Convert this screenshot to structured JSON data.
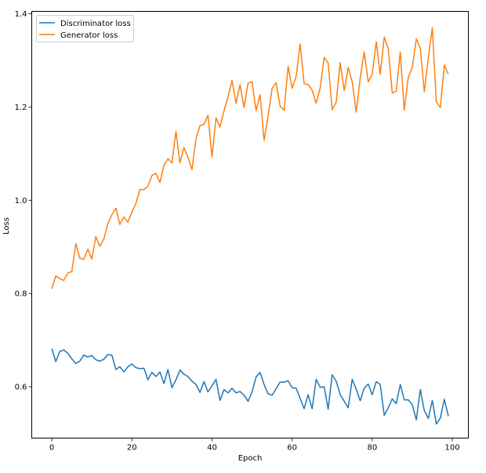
{
  "chart_data": {
    "type": "line",
    "xlabel": "Epoch",
    "ylabel": "Loss",
    "xlim": [
      -5,
      104
    ],
    "ylim": [
      0.49,
      1.405
    ],
    "xticks": [
      0,
      20,
      40,
      60,
      80,
      100
    ],
    "yticks": [
      0.6,
      0.8,
      1.0,
      1.2,
      1.4
    ],
    "xtick_labels": [
      "0",
      "20",
      "40",
      "60",
      "80",
      "100"
    ],
    "ytick_labels": [
      "0.6",
      "0.8",
      "1.0",
      "1.2",
      "1.4"
    ],
    "grid": false,
    "legend_position": "upper left",
    "series": [
      {
        "name": "Discriminator loss",
        "color": "#1f77b4",
        "values": [
          0.682,
          0.654,
          0.676,
          0.679,
          0.672,
          0.66,
          0.65,
          0.655,
          0.668,
          0.664,
          0.667,
          0.658,
          0.655,
          0.659,
          0.669,
          0.668,
          0.637,
          0.643,
          0.632,
          0.643,
          0.649,
          0.641,
          0.639,
          0.64,
          0.615,
          0.631,
          0.622,
          0.632,
          0.607,
          0.637,
          0.598,
          0.615,
          0.636,
          0.627,
          0.622,
          0.612,
          0.605,
          0.588,
          0.611,
          0.589,
          0.602,
          0.616,
          0.571,
          0.594,
          0.587,
          0.597,
          0.587,
          0.59,
          0.582,
          0.569,
          0.589,
          0.621,
          0.631,
          0.605,
          0.585,
          0.582,
          0.596,
          0.61,
          0.61,
          0.613,
          0.598,
          0.597,
          0.575,
          0.553,
          0.583,
          0.553,
          0.616,
          0.599,
          0.6,
          0.552,
          0.626,
          0.612,
          0.583,
          0.569,
          0.555,
          0.616,
          0.595,
          0.57,
          0.597,
          0.606,
          0.583,
          0.611,
          0.605,
          0.539,
          0.555,
          0.574,
          0.564,
          0.605,
          0.572,
          0.572,
          0.562,
          0.529,
          0.594,
          0.549,
          0.532,
          0.571,
          0.52,
          0.533,
          0.573,
          0.537
        ]
      },
      {
        "name": "Generator loss",
        "color": "#ff7f0e",
        "values": [
          0.81,
          0.838,
          0.832,
          0.828,
          0.844,
          0.847,
          0.907,
          0.876,
          0.873,
          0.895,
          0.874,
          0.922,
          0.901,
          0.917,
          0.95,
          0.969,
          0.983,
          0.948,
          0.964,
          0.953,
          0.975,
          0.993,
          1.023,
          1.023,
          1.03,
          1.053,
          1.058,
          1.038,
          1.075,
          1.089,
          1.08,
          1.148,
          1.08,
          1.113,
          1.092,
          1.066,
          1.132,
          1.16,
          1.163,
          1.182,
          1.093,
          1.177,
          1.157,
          1.192,
          1.222,
          1.257,
          1.208,
          1.248,
          1.199,
          1.251,
          1.254,
          1.192,
          1.226,
          1.128,
          1.18,
          1.24,
          1.252,
          1.202,
          1.193,
          1.287,
          1.24,
          1.265,
          1.335,
          1.25,
          1.248,
          1.236,
          1.208,
          1.241,
          1.306,
          1.294,
          1.194,
          1.21,
          1.295,
          1.235,
          1.285,
          1.254,
          1.189,
          1.262,
          1.318,
          1.254,
          1.27,
          1.34,
          1.27,
          1.35,
          1.325,
          1.23,
          1.234,
          1.318,
          1.193,
          1.263,
          1.285,
          1.346,
          1.326,
          1.233,
          1.305,
          1.37,
          1.211,
          1.199,
          1.29,
          1.27
        ]
      }
    ]
  }
}
